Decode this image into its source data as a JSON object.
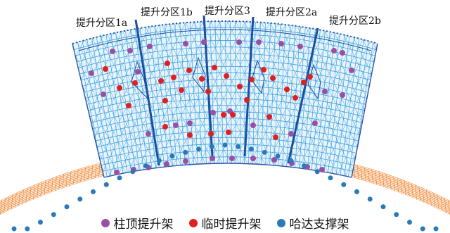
{
  "zones": [
    {
      "id": "1a",
      "label": "提升分区1a"
    },
    {
      "id": "1b",
      "label": "提升分区1b"
    },
    {
      "id": "3",
      "label": "提升分区3"
    },
    {
      "id": "2a",
      "label": "提升分区2a"
    },
    {
      "id": "2b",
      "label": "提升分区2b"
    }
  ],
  "legend": [
    {
      "key": "column_top",
      "label": "柱顶提升架",
      "color": "#9b4fa3"
    },
    {
      "key": "temporary",
      "label": "临时提升架",
      "color": "#e02020"
    },
    {
      "key": "harbour",
      "label": "哈达支撑架",
      "color": "#2a7ab8"
    }
  ],
  "colors": {
    "grid": "#3aa0e0",
    "grid_dark": "#1a4fa0",
    "lower_grid": "#f08a3a",
    "outline": "#2a55a8"
  }
}
